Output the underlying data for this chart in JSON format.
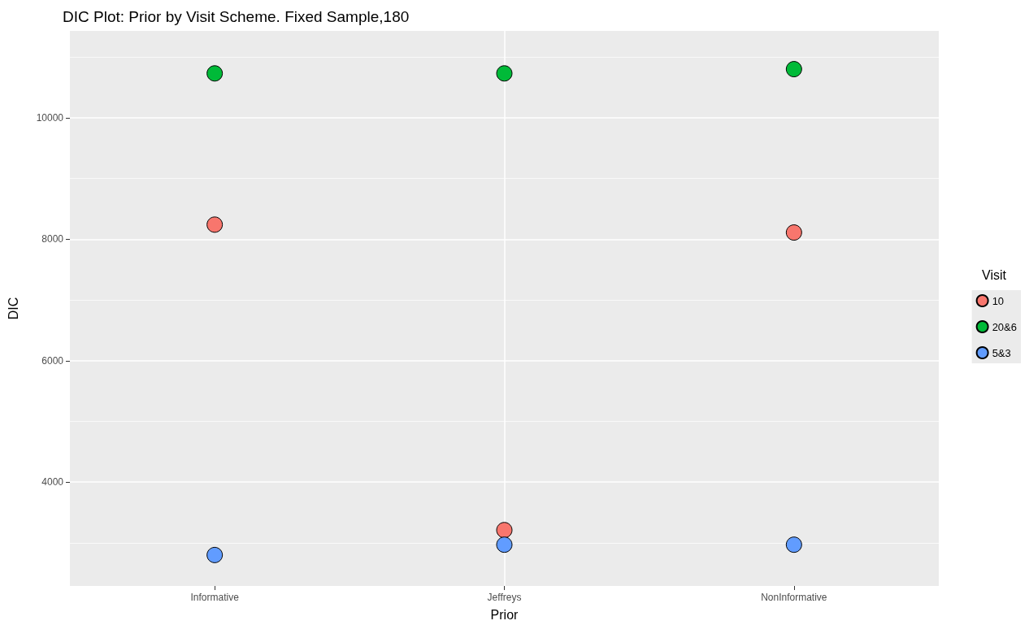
{
  "chart_data": {
    "type": "scatter",
    "title": "DIC Plot: Prior by Visit Scheme. Fixed Sample,180",
    "xlabel": "Prior",
    "ylabel": "DIC",
    "legend_title": "Visit",
    "categories": [
      "Informative",
      "Jeffreys",
      "NonInformative"
    ],
    "series": [
      {
        "name": "10",
        "color": "#f8766d",
        "values": [
          8240,
          3210,
          8110
        ]
      },
      {
        "name": "20&6",
        "color": "#00ba38",
        "values": [
          10730,
          10730,
          10800
        ]
      },
      {
        "name": "5&3",
        "color": "#619cff",
        "values": [
          2800,
          2970,
          2970
        ]
      }
    ],
    "ylim": [
      2290,
      11430
    ],
    "yticks": [
      4000,
      6000,
      8000,
      10000
    ],
    "grid": true,
    "legend": "right",
    "marker": "circle"
  }
}
